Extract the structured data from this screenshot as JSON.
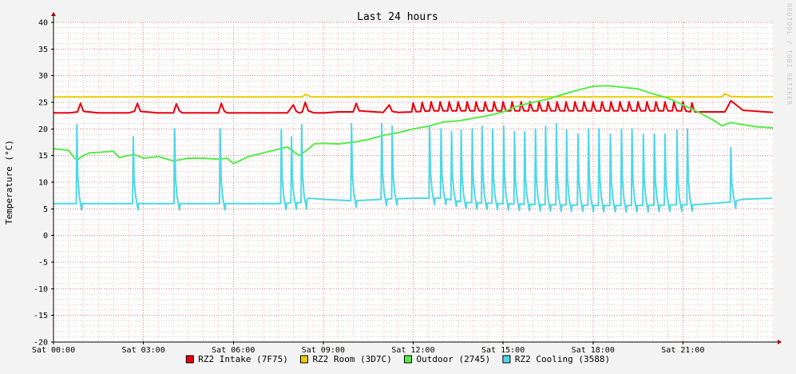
{
  "chart_data": {
    "type": "line",
    "title": "Last 24 hours",
    "ylabel": "Temperature (°C)",
    "xlabel": "",
    "watermark": "RRDTOOL / TOBI OETIKER",
    "x_range_hours": [
      0,
      24
    ],
    "ylim": [
      -20,
      40
    ],
    "y_ticks": [
      -20,
      -15,
      -10,
      -5,
      0,
      5,
      10,
      15,
      20,
      25,
      30,
      35,
      40
    ],
    "x_ticks": [
      {
        "hour": 0,
        "label": "Sat 00:00"
      },
      {
        "hour": 3,
        "label": "Sat 03:00"
      },
      {
        "hour": 6,
        "label": "Sat 06:00"
      },
      {
        "hour": 9,
        "label": "Sat 09:00"
      },
      {
        "hour": 12,
        "label": "Sat 12:00"
      },
      {
        "hour": 15,
        "label": "Sat 15:00"
      },
      {
        "hour": 18,
        "label": "Sat 18:00"
      },
      {
        "hour": 21,
        "label": "Sat 21:00"
      }
    ],
    "grid": true,
    "legend_position": "bottom",
    "series": [
      {
        "name": "RZ2 Intake (7F75)",
        "color": "#E8000D",
        "x": [
          0,
          0.5,
          0.8,
          0.9,
          1.0,
          1.5,
          2.0,
          2.5,
          2.7,
          2.8,
          2.9,
          3.5,
          4.0,
          4.1,
          4.2,
          4.3,
          5.0,
          5.5,
          5.6,
          5.7,
          5.8,
          6.5,
          7.0,
          7.5,
          7.8,
          8.0,
          8.1,
          8.2,
          8.3,
          8.4,
          8.5,
          8.7,
          9.0,
          9.5,
          10.0,
          10.1,
          10.2,
          11.0,
          11.2,
          11.3,
          11.5,
          12.0,
          12.3,
          12.6,
          12.9,
          13.2,
          13.5,
          13.8,
          14.1,
          14.4,
          14.7,
          15.0,
          15.3,
          15.6,
          15.9,
          16.2,
          16.5,
          16.8,
          17.1,
          17.4,
          17.7,
          18.0,
          18.3,
          18.6,
          18.9,
          19.2,
          19.5,
          19.8,
          20.1,
          20.4,
          20.7,
          21.0,
          21.3,
          21.6,
          22.0,
          22.2,
          22.4,
          22.6,
          23.0,
          23.5,
          24.0
        ],
        "y": [
          23,
          23,
          23.2,
          24.8,
          23.3,
          23,
          23,
          23,
          23.3,
          24.8,
          23.3,
          23,
          23,
          24.7,
          23.4,
          23,
          23,
          23,
          24.8,
          23.3,
          23,
          23,
          23,
          23,
          23,
          24.5,
          23.3,
          23,
          23.2,
          25,
          23.4,
          23,
          23,
          23.2,
          23.2,
          24.8,
          23.4,
          23.1,
          24.5,
          23.3,
          23.1,
          23.2,
          23.3,
          23.4,
          23.4,
          23.4,
          23.4,
          23.4,
          23.4,
          23.4,
          23.4,
          23.4,
          23.4,
          23.4,
          23.4,
          23.4,
          23.4,
          23.4,
          23.4,
          23.4,
          23.4,
          23.4,
          23.4,
          23.4,
          23.4,
          23.4,
          23.4,
          23.4,
          23.4,
          23.4,
          23.4,
          23.4,
          23.2,
          23.2,
          23.2,
          23.2,
          23.2,
          25.3,
          23.5,
          23.3,
          23.1
        ],
        "spikes": {
          "from": 12.0,
          "to": 21.4,
          "every": 0.3,
          "height": 1.7
        }
      },
      {
        "name": "RZ2 Room (3D7C)",
        "color": "#EACC00",
        "x": [
          0,
          1,
          2,
          3,
          4,
          5,
          6,
          7,
          8,
          8.3,
          8.4,
          8.6,
          9,
          10,
          11,
          12,
          13,
          14,
          15,
          16,
          17,
          18,
          19,
          20,
          21,
          22,
          22.3,
          22.4,
          22.6,
          23,
          24
        ],
        "y": [
          26,
          26,
          26,
          26,
          26,
          26,
          26,
          26,
          26,
          26,
          26.5,
          26,
          26,
          26,
          26,
          26,
          26,
          26,
          26,
          26,
          26,
          26,
          26,
          26,
          26,
          26,
          26,
          26.6,
          26.1,
          26,
          26
        ]
      },
      {
        "name": "Outdoor (2745)",
        "color": "#54EC48",
        "x": [
          0,
          0.3,
          0.5,
          0.7,
          0.8,
          1.0,
          1.2,
          1.5,
          2.0,
          2.2,
          2.4,
          2.7,
          3.0,
          3.5,
          4.0,
          4.5,
          5.0,
          5.5,
          5.8,
          6.0,
          6.2,
          6.5,
          7.0,
          7.5,
          7.8,
          8.0,
          8.2,
          8.5,
          8.7,
          9.0,
          9.5,
          10.0,
          10.5,
          11.0,
          11.5,
          12.0,
          12.5,
          13.0,
          13.5,
          14.0,
          14.5,
          15.0,
          15.5,
          16.0,
          16.5,
          17.0,
          17.5,
          18.0,
          18.5,
          19.0,
          19.5,
          20.0,
          20.5,
          21.0,
          21.5,
          22.0,
          22.3,
          22.6,
          23.0,
          23.5,
          24.0
        ],
        "y": [
          16.3,
          16.1,
          16,
          14.5,
          14.2,
          15,
          15.5,
          15.6,
          15.8,
          14.6,
          14.9,
          15.2,
          14.5,
          14.8,
          14,
          14.5,
          14.5,
          14.3,
          14.5,
          13.5,
          14,
          14.8,
          15.5,
          16.2,
          16.6,
          15.8,
          15,
          16.2,
          17.2,
          17.3,
          17.2,
          17.5,
          18,
          18.8,
          19.3,
          20,
          20.5,
          21.3,
          21.5,
          22,
          22.5,
          23.2,
          24.3,
          25,
          25.6,
          26.5,
          27.3,
          28,
          28.1,
          27.8,
          27.5,
          26.6,
          25.8,
          24.5,
          23.2,
          21.7,
          20.6,
          21.2,
          20.8,
          20.4,
          20.2
        ]
      },
      {
        "name": "RZ2 Cooling (3588)",
        "color": "#4DD8E6",
        "base": {
          "x": [
            0,
            0.8,
            2.5,
            4.0,
            5.5,
            7.5,
            8.3,
            8.5,
            9.0,
            10.0,
            11.0,
            12.0,
            13.0,
            13.7,
            16.0,
            19.0,
            21.5,
            22.6,
            23.0,
            24.0
          ],
          "y": [
            6,
            6,
            6,
            6,
            6,
            6,
            6.2,
            7,
            6.8,
            6.5,
            6.8,
            7,
            7,
            6.2,
            5.8,
            5.6,
            5.8,
            6.3,
            6.8,
            7
          ]
        },
        "spike_hours": [
          0.78,
          2.66,
          4.04,
          5.56,
          7.6,
          7.94,
          8.28,
          9.94,
          10.95,
          11.3,
          12.55,
          12.93,
          13.28,
          13.6,
          13.97,
          14.3,
          14.65,
          15.02,
          15.38,
          15.72,
          16.08,
          16.42,
          16.78,
          17.12,
          17.5,
          17.85,
          18.2,
          18.58,
          18.95,
          19.3,
          19.68,
          20.05,
          20.4,
          20.8,
          21.15,
          22.6
        ],
        "spike_peaks": [
          20.8,
          18.5,
          20,
          20,
          20,
          18.5,
          20.8,
          21,
          21,
          20.5,
          20.5,
          20,
          19.5,
          19.8,
          20,
          20.5,
          20,
          20.5,
          19.5,
          19.5,
          20,
          20.5,
          21,
          19.8,
          19,
          20,
          20,
          19,
          20,
          20,
          19,
          19,
          19,
          19.8,
          20,
          16.5
        ]
      }
    ]
  }
}
